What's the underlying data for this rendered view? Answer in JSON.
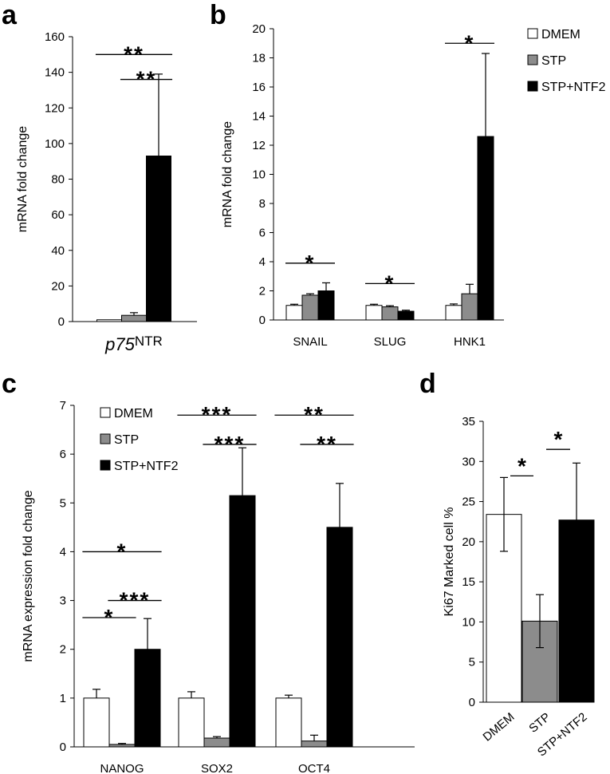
{
  "colors": {
    "DMEM": "#ffffff",
    "STP": "#8c8c8c",
    "STP+NTF2": "#000000"
  },
  "chart_data": [
    {
      "panel": "a",
      "type": "bar",
      "ylabel": "mRNA fold change",
      "ylim": [
        0,
        160
      ],
      "ticks": [
        0,
        20,
        40,
        60,
        80,
        100,
        120,
        140,
        160
      ],
      "categories": [
        "p75"
      ],
      "category_suffix": [
        "NTR"
      ],
      "category_italic": true,
      "series": [
        {
          "name": "DMEM",
          "values": [
            1
          ],
          "errors": [
            0
          ]
        },
        {
          "name": "STP",
          "values": [
            3.5
          ],
          "errors": [
            1.5
          ]
        },
        {
          "name": "STP+NTF2",
          "values": [
            93
          ],
          "errors": [
            46
          ]
        }
      ],
      "significance": [
        {
          "from": [
            0,
            0
          ],
          "to": [
            0,
            2
          ],
          "label": "**",
          "y": 150
        },
        {
          "from": [
            0,
            1
          ],
          "to": [
            0,
            2
          ],
          "label": "**",
          "y": 136
        }
      ],
      "legend": null
    },
    {
      "panel": "b",
      "type": "bar",
      "ylabel": "mRNA fold change",
      "ylim": [
        0,
        20
      ],
      "ticks": [
        0,
        2,
        4,
        6,
        8,
        10,
        12,
        14,
        16,
        18,
        20
      ],
      "categories": [
        "SNAIL",
        "SLUG",
        "HNK1"
      ],
      "series": [
        {
          "name": "DMEM",
          "values": [
            1.0,
            1.0,
            1.0
          ],
          "errors": [
            0.08,
            0.08,
            0.1
          ]
        },
        {
          "name": "STP",
          "values": [
            1.7,
            0.9,
            1.8
          ],
          "errors": [
            0.1,
            0.08,
            0.65
          ]
        },
        {
          "name": "STP+NTF2",
          "values": [
            2.0,
            0.6,
            12.6
          ],
          "errors": [
            0.55,
            0.07,
            5.7
          ]
        }
      ],
      "significance": [
        {
          "from": [
            0,
            0
          ],
          "to": [
            0,
            2
          ],
          "label": "*",
          "y": 3.9
        },
        {
          "from": [
            1,
            0
          ],
          "to": [
            1,
            2
          ],
          "label": "*",
          "y": 2.5
        },
        {
          "from": [
            2,
            0
          ],
          "to": [
            2,
            2
          ],
          "label": "*",
          "y": 19
        }
      ],
      "legend": {
        "placement": "outside-right",
        "entries": [
          "DMEM",
          "STP",
          "STP+NTF2"
        ]
      }
    },
    {
      "panel": "c",
      "type": "bar",
      "ylabel": "mRNA expression fold change",
      "ylim": [
        0,
        7
      ],
      "ticks": [
        0,
        1,
        2,
        3,
        4,
        5,
        6,
        7
      ],
      "categories": [
        "NANOG",
        "SOX2",
        "OCT4"
      ],
      "series": [
        {
          "name": "DMEM",
          "values": [
            1.0,
            1.0,
            1.0
          ],
          "errors": [
            0.18,
            0.13,
            0.06
          ]
        },
        {
          "name": "STP",
          "values": [
            0.05,
            0.18,
            0.12
          ],
          "errors": [
            0.02,
            0.03,
            0.12
          ]
        },
        {
          "name": "STP+NTF2",
          "values": [
            2.0,
            5.15,
            4.5
          ],
          "errors": [
            0.63,
            0.98,
            0.9
          ]
        }
      ],
      "significance": [
        {
          "from": [
            0,
            0
          ],
          "to": [
            0,
            1
          ],
          "label": "*",
          "y": 2.65
        },
        {
          "from": [
            0,
            0
          ],
          "to": [
            0,
            2
          ],
          "label": "*",
          "y": 4.0
        },
        {
          "from": [
            0,
            1
          ],
          "to": [
            0,
            2
          ],
          "label": "***",
          "y": 3.0
        },
        {
          "from": [
            1,
            0
          ],
          "to": [
            1,
            2
          ],
          "label": "***",
          "y": 6.8
        },
        {
          "from": [
            1,
            1
          ],
          "to": [
            1,
            2
          ],
          "label": "***",
          "y": 6.2
        },
        {
          "from": [
            2,
            0
          ],
          "to": [
            2,
            2
          ],
          "label": "**",
          "y": 6.8
        },
        {
          "from": [
            2,
            1
          ],
          "to": [
            2,
            2
          ],
          "label": "**",
          "y": 6.2
        }
      ],
      "legend": {
        "placement": "top-left",
        "entries": [
          "DMEM",
          "STP",
          "STP+NTF2"
        ]
      }
    },
    {
      "panel": "d",
      "type": "bar",
      "ylabel": "Ki67 Marked cell %",
      "ylim": [
        0,
        35
      ],
      "ticks": [
        0,
        5,
        10,
        15,
        20,
        25,
        30,
        35
      ],
      "categories": [
        "DMEM",
        "STP",
        "STP+NTF2"
      ],
      "category_rotate": -40,
      "series": [
        {
          "name": "Ki67",
          "values": [
            23.4,
            10.1,
            22.7
          ],
          "errors": [
            4.6,
            3.3,
            7.1
          ],
          "colors": [
            "#ffffff",
            "#8c8c8c",
            "#000000"
          ]
        }
      ],
      "significance": [
        {
          "from": 0,
          "to": 1,
          "label": "*",
          "y": 28.2
        },
        {
          "from": 1,
          "to": 2,
          "label": "*",
          "y": 31.5
        }
      ],
      "legend": null
    }
  ]
}
